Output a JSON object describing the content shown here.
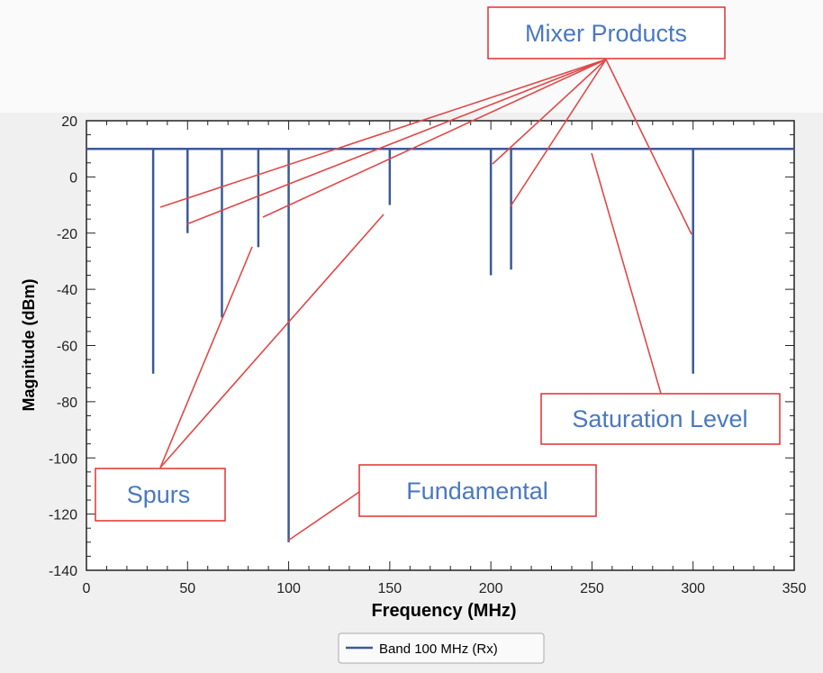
{
  "chart_data": {
    "type": "bar",
    "title": "",
    "xlabel": "Frequency (MHz)",
    "ylabel": "Magnitude (dBm)",
    "xlim": [
      0,
      350
    ],
    "ylim": [
      -140,
      20
    ],
    "xticks": [
      0,
      50,
      100,
      150,
      200,
      250,
      300,
      350
    ],
    "yticks": [
      20,
      0,
      -20,
      -40,
      -60,
      -80,
      -100,
      -120,
      -140
    ],
    "grid": false,
    "legend": "bottom",
    "series": [
      {
        "name": "Band 100 MHz (Rx)",
        "color": "#3c5a96",
        "baseline": 10,
        "x": [
          33,
          50,
          67,
          85,
          100,
          150,
          200,
          210,
          300
        ],
        "values": [
          -70,
          -20,
          -50,
          -25,
          -130,
          -10,
          -35,
          -33,
          -70
        ]
      }
    ],
    "annotations": [
      {
        "text": "Mixer Products",
        "color": "#4a78c0",
        "border": "#e03030"
      },
      {
        "text": "Spurs",
        "color": "#4a78c0",
        "border": "#e03030"
      },
      {
        "text": "Fundamental",
        "color": "#4a78c0",
        "border": "#e03030"
      },
      {
        "text": "Saturation Level",
        "color": "#4a78c0",
        "border": "#e03030"
      }
    ]
  }
}
